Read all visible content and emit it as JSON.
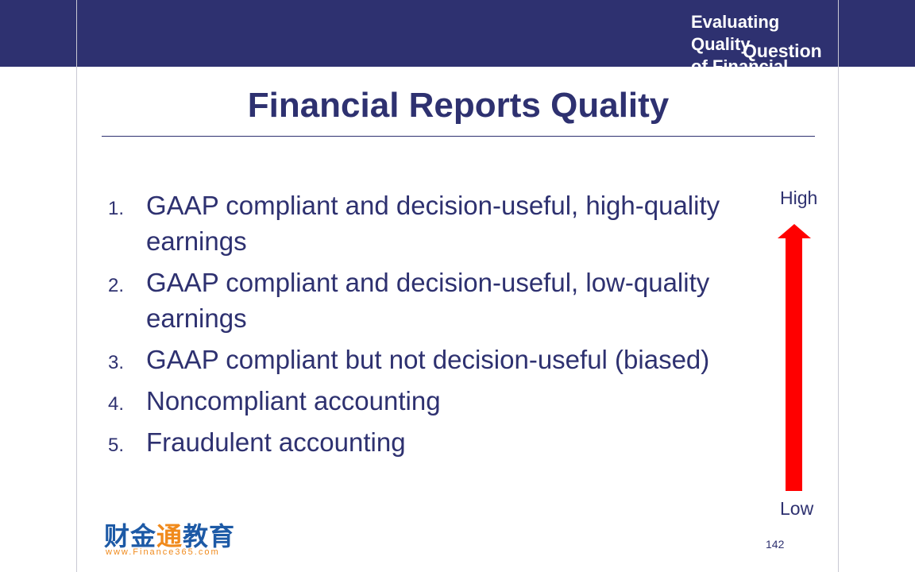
{
  "header": {
    "section_lines": [
      "Evaluating",
      "Quality",
      "of Financial"
    ],
    "overlay": "Question"
  },
  "slide": {
    "title": "Financial Reports Quality",
    "items": [
      {
        "num": "1.",
        "text": "GAAP compliant and decision-useful, high-quality earnings"
      },
      {
        "num": "2.",
        "text": "GAAP compliant and decision-useful, low-quality earnings"
      },
      {
        "num": "3.",
        "text": "GAAP compliant but not decision-useful (biased)"
      },
      {
        "num": "4.",
        "text": "Noncompliant accounting"
      },
      {
        "num": "5.",
        "text": "Fraudulent accounting"
      }
    ],
    "scale": {
      "high": "High",
      "low": "Low",
      "arrow_color": "#ff0000"
    },
    "logo": {
      "cn_a": "财金",
      "cn_b": "通",
      "cn_c": "教育",
      "url": "www.Finance365.com"
    },
    "page_number": "142"
  },
  "colors": {
    "navy": "#2e3170"
  }
}
